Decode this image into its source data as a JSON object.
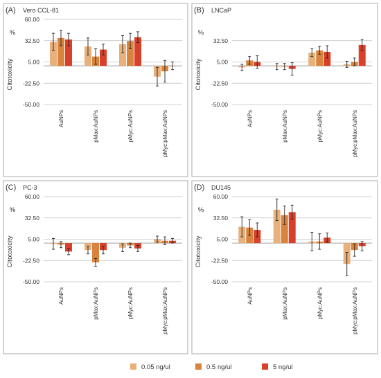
{
  "colors": {
    "series": [
      "#e8b07a",
      "#d9843e",
      "#d8402a"
    ],
    "axis_line": "#a0a0a0",
    "grid_line": "#c0c0c0",
    "panel_border": "#aaaaaa",
    "text": "#333333"
  },
  "legend": {
    "entries": [
      "0.05 ng/ul",
      "0.5 ng/ul",
      "5 ng/ul"
    ]
  },
  "chart_data": [
    {
      "type": "bar",
      "panel_label": "(A)",
      "title": "Vero  CCL-81",
      "ylabel": "Citotoxicity",
      "unit_label": "%",
      "yticks": [
        "60.00",
        "32.50",
        "5.00",
        "-22.50",
        "-50.00"
      ],
      "ylim": [
        -50,
        60
      ],
      "grid": true,
      "categories": [
        "AuNPs",
        "pMax:AuNPs",
        "pMyc:AuNPs",
        "pMyc:pMax:AuNPs"
      ],
      "series": [
        {
          "name": "0.05 ng/ul",
          "values": [
            31,
            25,
            28,
            -14
          ],
          "errors": [
            11,
            11,
            11,
            12
          ]
        },
        {
          "name": "0.5 ng/ul",
          "values": [
            36,
            12,
            32,
            -7
          ],
          "errors": [
            10,
            10,
            10,
            14
          ]
        },
        {
          "name": "5 ng/ul",
          "values": [
            34,
            21,
            37,
            0
          ],
          "errors": [
            8,
            7,
            7,
            5
          ]
        }
      ]
    },
    {
      "type": "bar",
      "panel_label": "(B)",
      "title": "LNCaP",
      "ylabel": "Citotoxicity",
      "unit_label": "%",
      "yticks": [
        "32.50",
        "5.00",
        "-22.50",
        "-50.00"
      ],
      "ylim": [
        -50,
        60
      ],
      "grid": true,
      "categories": [
        "AuNPs",
        "pMax:AuNPs",
        "pMyc:AuNPs",
        "pMyc:pMax:AuNPs"
      ],
      "series": [
        {
          "name": "0.05 ng/ul",
          "values": [
            -2,
            -1,
            17,
            2
          ],
          "errors": [
            4,
            4,
            5,
            4
          ]
        },
        {
          "name": "0.5 ng/ul",
          "values": [
            7,
            -1,
            20,
            5
          ],
          "errors": [
            5,
            4,
            5,
            5
          ]
        },
        {
          "name": "5 ng/ul",
          "values": [
            5,
            -4,
            18,
            27
          ],
          "errors": [
            8,
            8,
            8,
            7
          ]
        }
      ]
    },
    {
      "type": "bar",
      "panel_label": "(C)",
      "title": "PC-3",
      "ylabel": "Citotoxicity",
      "unit_label": "%",
      "yticks": [
        "60.00",
        "32.50",
        "5.00",
        "-22.50",
        "-50.00"
      ],
      "ylim": [
        -50,
        60
      ],
      "grid": true,
      "categories": [
        "AuNPs",
        "pMax:AuNPs",
        "pMyc:AuNPs",
        "pMyc:pMax:AuNPs"
      ],
      "series": [
        {
          "name": "0.05 ng/ul",
          "values": [
            -1,
            -9,
            -6,
            5
          ],
          "errors": [
            7,
            5,
            5,
            4
          ]
        },
        {
          "name": "0.5 ng/ul",
          "values": [
            -2,
            -25,
            -3,
            3
          ],
          "errors": [
            4,
            5,
            3,
            5
          ]
        },
        {
          "name": "5 ng/ul",
          "values": [
            -11,
            -9,
            -7,
            3
          ],
          "errors": [
            4,
            5,
            4,
            3
          ]
        }
      ]
    },
    {
      "type": "bar",
      "panel_label": "(D)",
      "title": "DU145",
      "ylabel": "Citotoxicity",
      "unit_label": "%",
      "yticks": [
        "60.00",
        "32.50",
        "5.00",
        "-22.50",
        "-50.00"
      ],
      "ylim": [
        -50,
        60
      ],
      "grid": true,
      "categories": [
        "AuNPs",
        "pMax:AuNPs",
        "pMyc:AuNPs",
        "pMyc:pMax:AuNPs"
      ],
      "series": [
        {
          "name": "0.05 ng/ul",
          "values": [
            21,
            43,
            2,
            -27
          ],
          "errors": [
            13,
            14,
            12,
            15
          ]
        },
        {
          "name": "0.5 ng/ul",
          "values": [
            20,
            36,
            2,
            -9
          ],
          "errors": [
            10,
            12,
            10,
            8
          ]
        },
        {
          "name": "5 ng/ul",
          "values": [
            17,
            40,
            7,
            -4
          ],
          "errors": [
            9,
            9,
            6,
            6
          ]
        }
      ]
    }
  ]
}
